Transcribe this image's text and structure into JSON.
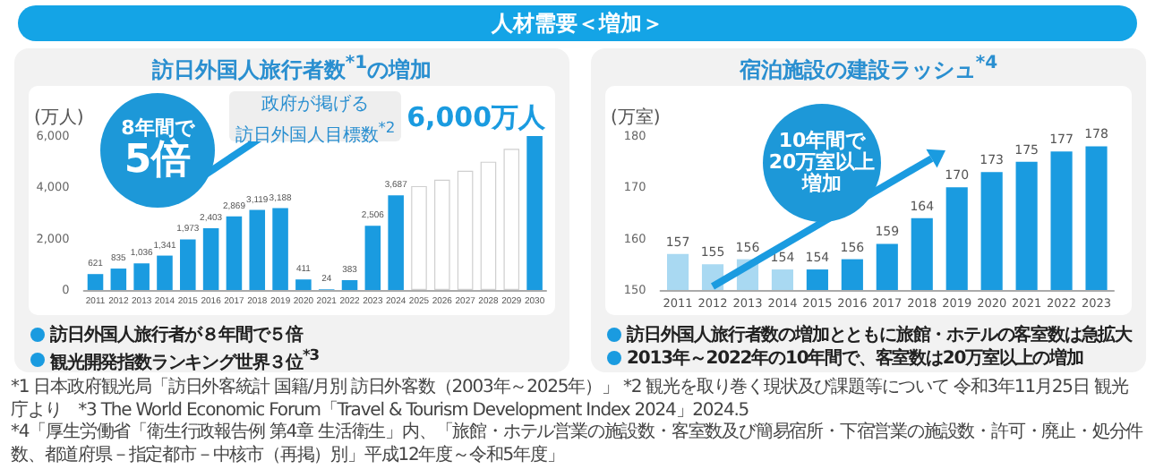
{
  "chart_data": [
    {
      "type": "bar",
      "title": "訪日外国人旅行者数$^{*1}$の増加",
      "ylabel": "(万人)",
      "categories": [
        "2011",
        "2012",
        "2013",
        "2014",
        "2015",
        "2016",
        "2017",
        "2018",
        "2019",
        "2020",
        "2021",
        "2022",
        "2023",
        "2024",
        "2025",
        "2026",
        "2027",
        "2028",
        "2029",
        "2030"
      ],
      "values": [
        621,
        835,
        1036,
        1341,
        1973,
        2403,
        2869,
        3119,
        3188,
        411,
        24,
        383,
        2506,
        3687,
        4050,
        4300,
        4650,
        5000,
        5500,
        6000
      ],
      "colors": [
        "#1a9be0",
        "#1a9be0",
        "#1a9be0",
        "#1a9be0",
        "#1a9be0",
        "#1a9be0",
        "#1a9be0",
        "#1a9be0",
        "#1a9be0",
        "#1a9be0",
        "#1a9be0",
        "#1a9be0",
        "#1a9be0",
        "#1a9be0",
        "#ffffff",
        "#ffffff",
        "#ffffff",
        "#ffffff",
        "#ffffff",
        "#1a9be0"
      ],
      "value_labels": [
        "621",
        "835",
        "1,036",
        "1,341",
        "1,973",
        "2,403",
        "2,869",
        "3,119",
        "3,188",
        "411",
        "24",
        "383",
        "2,506",
        "3,687",
        null,
        null,
        null,
        null,
        null,
        null
      ],
      "ylim": [
        0,
        6000
      ],
      "yticks": [
        0,
        {
          "value": 2000,
          "label": "2,000"
        },
        {
          "value": 4000,
          "label": "4,000"
        },
        {
          "value": 6000,
          "label": "6,000"
        }
      ],
      "annotations": [
        "人材需要＜増加＞",
        "8年間で",
        "5倍",
        "政府が掲げる",
        "訪日外国人目標数$^{*2}$",
        {
          "text": "6,000万人",
          "x": "2030",
          "y": 6000
        },
        "訪日外国人旅行者が８年間で５倍",
        "観光開発指数ランキング世界３位$^{*3}$",
        "*1 日本政府観光局「訪日外客統計 国籍/月別 訪日外客数（2003年～2025年）」 *2 観光を取り巻く現状及び課題等について 令和3年11月25日 観光庁より　*3 The World Economic Forum「Travel & Tourism Development Index 2024」2024.5"
      ]
    },
    {
      "type": "bar",
      "title": "宿泊施設の建設ラッシュ$^{*4}$",
      "ylabel": "(万室)",
      "categories": [
        "2011",
        "2012",
        "2013",
        "2014",
        "2015",
        "2016",
        "2017",
        "2018",
        "2019",
        "2020",
        "2021",
        "2022",
        "2023"
      ],
      "values": [
        157,
        155,
        156,
        154,
        154,
        156,
        159,
        164,
        170,
        173,
        175,
        177,
        178
      ],
      "colors": [
        "#a9d9f2",
        "#a9d9f2",
        "#a9d9f2",
        "#a9d9f2",
        "#1a9be0",
        "#1a9be0",
        "#1a9be0",
        "#1a9be0",
        "#1a9be0",
        "#1a9be0",
        "#1a9be0",
        "#1a9be0",
        "#1a9be0"
      ],
      "data_labels": true,
      "ylim": [
        150,
        180
      ],
      "yticks": [
        150,
        160,
        170,
        180
      ],
      "annotations": [
        "10年間で",
        "20万室以上",
        "増加",
        "訪日外国人旅行者数の増加とともに旅館・ホテルの客室数は急拡大",
        "2013年～2022年の10年間で、客室数は20万室以上の増加",
        "*4「厚生労働省「衛生行政報告例 第4章 生活衛生」内、「旅館・ホテル営業の施設数・客室数及び簡易宿所・下宿営業の施設数・許可・廃止・処分件数、都道府県－指定都市－中核市（再掲）別」平成12年度～令和5年度」"
      ]
    }
  ]
}
